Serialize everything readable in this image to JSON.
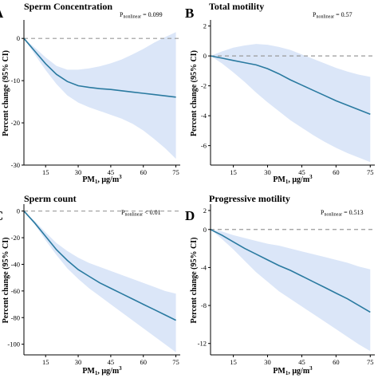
{
  "colors": {
    "line": "#2a7aa0",
    "band": "#dbe6f8",
    "reference": "#9a9a9a"
  },
  "chart_data": [
    {
      "type": "line",
      "panel": "A",
      "title": "Sperm Concentration",
      "xlabel": "PM",
      "xlabel_sub": "1",
      "xlabel_unit": ", μg/m",
      "xlabel_sup": "3",
      "ylabel": "Percent change (95% CI)",
      "p_text": "P",
      "p_sub": "nonlinear",
      "p_value": " = 0.099",
      "xlim": [
        5,
        77
      ],
      "ylim": [
        -30,
        4
      ],
      "xticks": [
        15,
        30,
        45,
        60,
        75
      ],
      "yticks": [
        0,
        -10,
        -20,
        -30
      ],
      "reference_y": 0,
      "x": [
        5,
        10,
        15,
        20,
        25,
        30,
        35,
        40,
        45,
        50,
        55,
        60,
        65,
        70,
        75
      ],
      "y": [
        0,
        -3,
        -6,
        -8.5,
        -10.2,
        -11.2,
        -11.6,
        -11.9,
        -12.1,
        -12.4,
        -12.7,
        -13,
        -13.3,
        -13.6,
        -13.9
      ],
      "lower": [
        0,
        -3.8,
        -7.5,
        -10.8,
        -13.5,
        -15.2,
        -16.3,
        -17.2,
        -18.1,
        -19,
        -20.2,
        -21.8,
        -23.8,
        -26,
        -28.5
      ],
      "upper": [
        0,
        -2.2,
        -4.5,
        -6.5,
        -7.4,
        -7.4,
        -7.1,
        -6.6,
        -5.9,
        -5,
        -3.8,
        -2.5,
        -1,
        0.3,
        1.5
      ]
    },
    {
      "type": "line",
      "panel": "B",
      "title": "Total motility",
      "xlabel": "PM",
      "xlabel_sub": "1",
      "xlabel_unit": ", μg/m",
      "xlabel_sup": "3",
      "ylabel": "Percent change (95% CI)",
      "p_text": "P",
      "p_sub": "nonlinear",
      "p_value": " = 0.57",
      "xlim": [
        5,
        77
      ],
      "ylim": [
        -7.3,
        2.3
      ],
      "xticks": [
        15,
        30,
        45,
        60,
        75
      ],
      "yticks": [
        2,
        0,
        -2,
        -4,
        -6
      ],
      "reference_y": 0,
      "x": [
        5,
        10,
        15,
        20,
        25,
        30,
        35,
        40,
        45,
        50,
        55,
        60,
        65,
        70,
        75
      ],
      "y": [
        0,
        -0.15,
        -0.3,
        -0.45,
        -0.6,
        -0.85,
        -1.2,
        -1.6,
        -1.95,
        -2.3,
        -2.65,
        -3,
        -3.3,
        -3.6,
        -3.9
      ],
      "lower": [
        0,
        -0.5,
        -1.1,
        -1.75,
        -2.45,
        -3.1,
        -3.7,
        -4.3,
        -4.8,
        -5.3,
        -5.75,
        -6.15,
        -6.5,
        -6.8,
        -7.1
      ],
      "upper": [
        0,
        0.3,
        0.55,
        0.7,
        0.8,
        0.75,
        0.6,
        0.4,
        0.1,
        -0.2,
        -0.5,
        -0.8,
        -1.05,
        -1.25,
        -1.4
      ]
    },
    {
      "type": "line",
      "panel": "C",
      "title": "Sperm count",
      "xlabel": "PM",
      "xlabel_sub": "1",
      "xlabel_unit": ", μg/m",
      "xlabel_sup": "3",
      "ylabel": "Percent change (95% CI)",
      "p_text": "P",
      "p_sub": "nonlinear",
      "p_value": " < 0.01",
      "xlim": [
        5,
        77
      ],
      "ylim": [
        -108,
        4
      ],
      "xticks": [
        15,
        30,
        45,
        60,
        75
      ],
      "yticks": [
        0,
        -20,
        -40,
        -60,
        -80,
        -100
      ],
      "reference_y": 0,
      "x": [
        5,
        10,
        15,
        20,
        25,
        30,
        35,
        40,
        45,
        50,
        55,
        60,
        65,
        70,
        75
      ],
      "y": [
        0,
        -9,
        -19,
        -29,
        -37,
        -44,
        -49,
        -54,
        -58,
        -62,
        -66,
        -70,
        -74,
        -78,
        -82
      ],
      "lower": [
        0,
        -10,
        -22,
        -33,
        -43,
        -51,
        -58,
        -64,
        -70,
        -76,
        -82,
        -88,
        -94,
        -100,
        -106
      ],
      "upper": [
        0,
        -7.5,
        -16,
        -24,
        -30,
        -35,
        -39,
        -42,
        -45,
        -48,
        -51,
        -54,
        -57,
        -60,
        -62
      ]
    },
    {
      "type": "line",
      "panel": "D",
      "title": "Progressive motility",
      "xlabel": "PM",
      "xlabel_sub": "1",
      "xlabel_unit": ", μg/m",
      "xlabel_sup": "3",
      "ylabel": "Percent change (95% CI)",
      "p_text": "P",
      "p_sub": "nonlinear",
      "p_value": " = 0.513",
      "xlim": [
        5,
        77
      ],
      "ylim": [
        -13.2,
        2.5
      ],
      "xticks": [
        15,
        30,
        45,
        60,
        75
      ],
      "yticks": [
        2,
        0,
        -4,
        -8,
        -12
      ],
      "reference_y": 0,
      "x": [
        5,
        10,
        15,
        20,
        25,
        30,
        35,
        40,
        45,
        50,
        55,
        60,
        65,
        70,
        75
      ],
      "y": [
        0,
        -0.6,
        -1.3,
        -2,
        -2.6,
        -3.2,
        -3.8,
        -4.3,
        -4.9,
        -5.5,
        -6.1,
        -6.7,
        -7.3,
        -8,
        -8.7
      ],
      "lower": [
        0,
        -1,
        -2.1,
        -3.3,
        -4.5,
        -5.5,
        -6.5,
        -7.3,
        -8.1,
        -8.9,
        -9.7,
        -10.5,
        -11.3,
        -12.1,
        -12.8
      ],
      "upper": [
        0,
        -0.2,
        -0.6,
        -0.9,
        -1.2,
        -1.5,
        -1.7,
        -2,
        -2.3,
        -2.6,
        -2.9,
        -3.2,
        -3.5,
        -3.9,
        -4.2
      ]
    }
  ]
}
